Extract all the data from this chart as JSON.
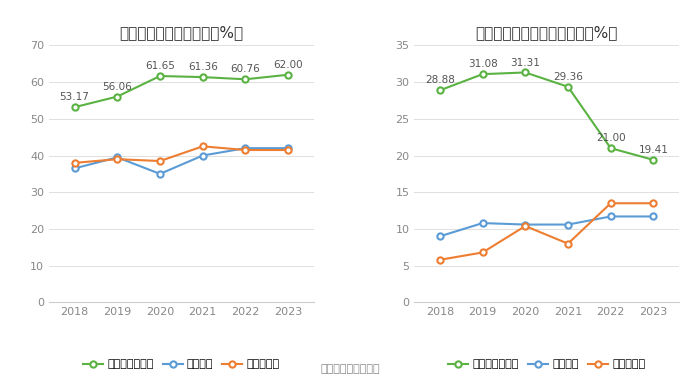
{
  "years": [
    2018,
    2019,
    2020,
    2021,
    2022,
    2023
  ],
  "left_title": "近年来资产负债率情况（%）",
  "left_company": [
    53.17,
    56.06,
    61.65,
    61.36,
    60.76,
    62.0
  ],
  "left_industry_mean": [
    36.5,
    39.5,
    35.0,
    40.0,
    42.0,
    42.0
  ],
  "left_industry_median": [
    38.0,
    39.0,
    38.5,
    42.5,
    41.5,
    41.5
  ],
  "left_ylim": [
    0,
    70
  ],
  "left_yticks": [
    0,
    10,
    20,
    30,
    40,
    50,
    60,
    70
  ],
  "right_title": "近年来有息资产负债率情况（%）",
  "right_company": [
    28.88,
    31.08,
    31.31,
    29.36,
    21.0,
    19.41
  ],
  "right_industry_mean": [
    9.0,
    10.8,
    10.6,
    10.6,
    11.7,
    11.7
  ],
  "right_industry_median": [
    5.8,
    6.8,
    10.4,
    8.0,
    13.5,
    13.5
  ],
  "right_ylim": [
    0,
    35
  ],
  "right_yticks": [
    0,
    5,
    10,
    15,
    20,
    25,
    30,
    35
  ],
  "green_color": "#5ab242",
  "blue_color": "#5b9bd5",
  "orange_color": "#ed7d31",
  "bg_color": "#ffffff",
  "grid_color": "#e0e0e0",
  "left_legend": [
    "公司资产负债率",
    "行业均值",
    "行业中位数"
  ],
  "right_legend": [
    "有息资产负债率",
    "行业均值",
    "行业中位数"
  ],
  "footer": "数据来源：恒生聚源",
  "title_fontsize": 11,
  "label_fontsize": 8,
  "annotation_fontsize": 7.5,
  "legend_fontsize": 8,
  "footer_fontsize": 8
}
